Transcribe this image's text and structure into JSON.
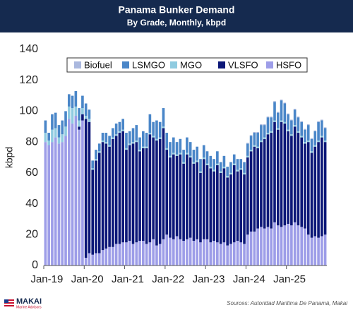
{
  "chart_data": {
    "type": "stacked_bar",
    "title": "Panama Bunker Demand",
    "subtitle": "By Grade, Monthly, kbpd",
    "y_label": "kbpd",
    "categories": [
      "Jan-19",
      null,
      null,
      null,
      null,
      null,
      null,
      null,
      null,
      null,
      null,
      null,
      "Jan-20",
      null,
      null,
      null,
      null,
      null,
      null,
      null,
      null,
      null,
      null,
      null,
      "Jan-21",
      null,
      null,
      null,
      null,
      null,
      null,
      null,
      null,
      null,
      null,
      null,
      "Jan-22",
      null,
      null,
      null,
      null,
      null,
      null,
      null,
      null,
      null,
      null,
      null,
      "Jan-23",
      null,
      null,
      null,
      null,
      null,
      null,
      null,
      null,
      null,
      null,
      null,
      "Jan-24",
      null,
      null,
      null,
      null,
      null,
      null,
      null,
      null,
      null,
      null,
      null,
      "Jan-25",
      null,
      null,
      null,
      null,
      null,
      null,
      null,
      null,
      null,
      null,
      null
    ],
    "series": [
      {
        "name": "Biofuel",
        "color": "#aab8de",
        "values": [
          0,
          0,
          0,
          0,
          0,
          0,
          0,
          0,
          0,
          0,
          0,
          0,
          0,
          0,
          0,
          0,
          0,
          0,
          0,
          0,
          0,
          0,
          0,
          0,
          0,
          0,
          0,
          0,
          0,
          0,
          0,
          0,
          0,
          0,
          0,
          0,
          0,
          0,
          0,
          0,
          0,
          0,
          0,
          0,
          0,
          0,
          0,
          0,
          0,
          0,
          0,
          0,
          0,
          0,
          0,
          0,
          0,
          0,
          0,
          0,
          0.5,
          0.5,
          0.5,
          0.5,
          0.5,
          0.5,
          0.5,
          0.5,
          0.5,
          0.5,
          0.5,
          0.5,
          0.5,
          0.5,
          0.5,
          0.5,
          0.5,
          0.5,
          0.5,
          0.5,
          0.5,
          0.5,
          0.5,
          0.5
        ]
      },
      {
        "name": "LSMGO",
        "color": "#4a86c8",
        "values": [
          8,
          5,
          10,
          10,
          8,
          9,
          10,
          8,
          8,
          10,
          8,
          8,
          8,
          6,
          5,
          6,
          5,
          5,
          6,
          6,
          6,
          7,
          6,
          7,
          10,
          8,
          9,
          10,
          8,
          10,
          9,
          12,
          9,
          12,
          10,
          12,
          10,
          9,
          10,
          8,
          9,
          8,
          10,
          9,
          8,
          9,
          8,
          8,
          8,
          7,
          7,
          8,
          6,
          7,
          6,
          7,
          6,
          7,
          6,
          7,
          8,
          9,
          8,
          9,
          10,
          8,
          10,
          9,
          12,
          10,
          13,
          12,
          10,
          9,
          10,
          9,
          9,
          8,
          10,
          8,
          9,
          12,
          10,
          8
        ]
      },
      {
        "name": "MGO",
        "color": "#8fcbe0",
        "values": [
          6,
          3,
          8,
          6,
          4,
          5,
          6,
          8,
          10,
          6,
          4,
          4,
          2,
          2,
          1,
          1,
          1,
          1,
          1,
          1,
          1,
          1,
          1,
          1,
          1,
          1,
          1,
          1,
          1,
          1,
          1,
          1,
          1,
          1,
          1,
          1,
          1,
          1,
          1,
          1,
          1,
          1,
          1,
          1,
          1,
          1,
          1,
          1,
          1,
          1,
          1,
          1,
          1,
          1,
          1,
          1,
          1,
          1,
          1,
          1,
          1,
          1,
          1,
          1,
          1,
          1,
          1,
          1,
          1,
          1,
          1,
          1,
          1,
          1,
          1,
          1,
          1,
          1,
          1,
          1,
          1,
          1,
          1,
          1
        ]
      },
      {
        "name": "VLSFO",
        "color": "#0c1778",
        "values": [
          0,
          0,
          0,
          0,
          0,
          0,
          0,
          0,
          0,
          0,
          2,
          4,
          90,
          85,
          55,
          60,
          65,
          70,
          68,
          65,
          70,
          70,
          72,
          72,
          60,
          62,
          65,
          65,
          58,
          60,
          62,
          70,
          66,
          68,
          68,
          72,
          55,
          52,
          55,
          52,
          55,
          50,
          55,
          52,
          50,
          50,
          45,
          52,
          48,
          48,
          45,
          50,
          46,
          48,
          44,
          45,
          50,
          45,
          47,
          45,
          50,
          52,
          55,
          52,
          55,
          58,
          60,
          62,
          65,
          62,
          68,
          66,
          60,
          58,
          62,
          60,
          58,
          55,
          60,
          55,
          58,
          62,
          64,
          60
        ]
      },
      {
        "name": "HSFO",
        "color": "#9d9de8",
        "values": [
          80,
          78,
          80,
          83,
          79,
          80,
          84,
          95,
          92,
          97,
          88,
          94,
          5,
          8,
          7,
          8,
          8,
          10,
          11,
          12,
          12,
          14,
          14,
          15,
          15,
          16,
          14,
          15,
          16,
          16,
          14,
          15,
          17,
          13,
          14,
          17,
          20,
          18,
          17,
          19,
          17,
          16,
          17,
          18,
          16,
          17,
          15,
          17,
          17,
          15,
          16,
          15,
          14,
          15,
          13,
          14,
          15,
          16,
          15,
          14,
          20,
          22,
          22,
          24,
          25,
          24,
          25,
          24,
          28,
          26,
          25,
          26,
          27,
          26,
          28,
          26,
          25,
          24,
          20,
          18,
          19,
          18,
          19,
          20
        ]
      }
    ],
    "ylim": [
      0,
      140
    ],
    "yticks": [
      0,
      20,
      40,
      60,
      80,
      100,
      120,
      140
    ],
    "grid": false,
    "legend": "top"
  },
  "footer": {
    "logo_name": "MAKAI",
    "logo_tagline": "Marine Advisors",
    "source": "Sources: Autoridad Maritima De Panamá, Makai"
  }
}
